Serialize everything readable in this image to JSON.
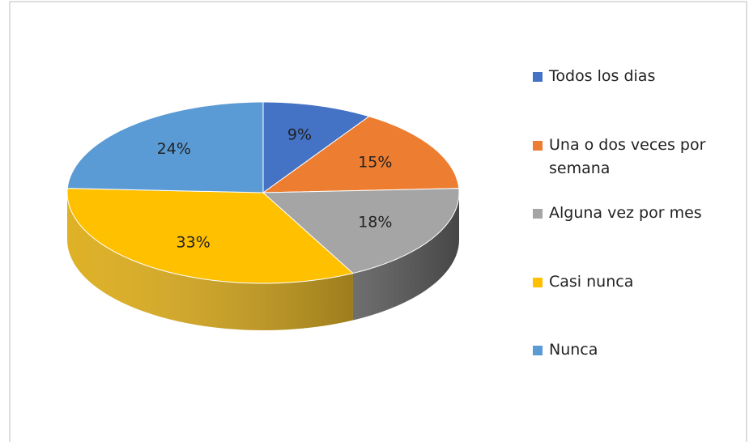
{
  "chart_data": {
    "type": "pie",
    "categories": [
      "Todos los dias",
      "Una o dos veces por semana",
      "Alguna vez por mes",
      "Casi nunca",
      "Nunca"
    ],
    "values": [
      9,
      15,
      18,
      33,
      24
    ],
    "value_labels": [
      "9%",
      "15%",
      "18%",
      "33%",
      "24%"
    ],
    "colors": [
      "#4472c4",
      "#ed7d31",
      "#a5a5a5",
      "#ffc000",
      "#5b9bd5"
    ],
    "legend": "right"
  }
}
